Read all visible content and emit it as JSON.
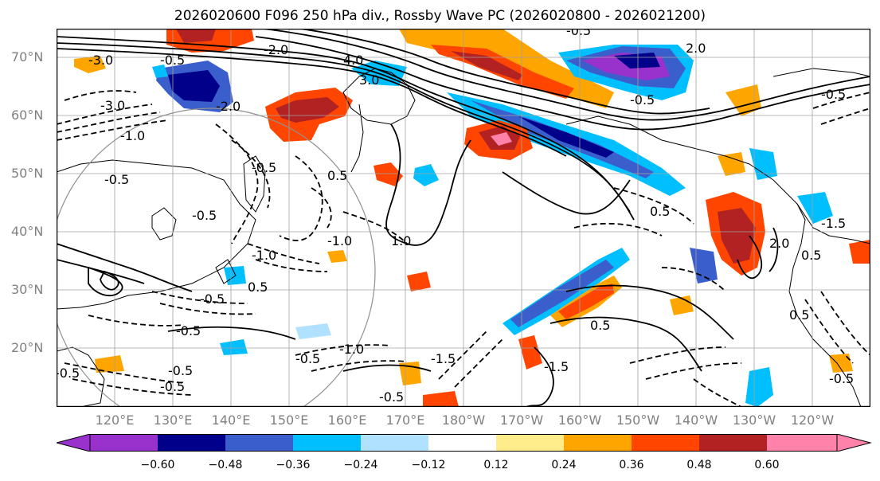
{
  "title": "2026020600 F096 250 hPa div., Rossby Wave PC (2026020800 - 2026021200)",
  "latitude_labels": [
    "70°N",
    "60°N",
    "50°N",
    "40°N",
    "30°N",
    "20°N"
  ],
  "longitude_labels": [
    "120°E",
    "130°E",
    "140°E",
    "150°E",
    "160°E",
    "170°E",
    "180°W",
    "170°W",
    "160°W",
    "150°W",
    "140°W",
    "130°W",
    "120°W"
  ],
  "colorbar": {
    "tick_labels": [
      "−0.60",
      "−0.48",
      "−0.36",
      "−0.24",
      "−0.12",
      "0.12",
      "0.24",
      "0.36",
      "0.48",
      "0.60"
    ],
    "colors": [
      "#9932cc",
      "#00008b",
      "#3a5fcd",
      "#00bfff",
      "#b0e2ff",
      "#ffffff",
      "#ffec8b",
      "#ffa500",
      "#ff4500",
      "#b22222",
      "#ff82ab"
    ]
  },
  "contour_labels": [
    "-3.0",
    "-0.5",
    "-2.0",
    "4.0",
    "3.0",
    "2.0",
    "-0.5",
    "-3.0",
    "-2.0",
    "-1.0",
    "-0.5",
    "-0.5",
    "-0.5",
    "0.5",
    "-1.0",
    "-1.0",
    "-0.5",
    "0.5",
    "-0.5",
    "-0.5",
    "-1.0",
    "-0.5",
    "-0.5",
    "-0.5",
    "-0.5",
    "0.5",
    "-1.5",
    "0.5",
    "-0.5",
    "2.0",
    "0.5",
    "-1.5",
    "0.5",
    "-0.5",
    "1.0",
    "-1.5",
    "-0.5"
  ],
  "colors": {
    "coast": "#000000",
    "grid": "#a0a0a0",
    "contour": "#000000",
    "axis_label": "#808080"
  }
}
